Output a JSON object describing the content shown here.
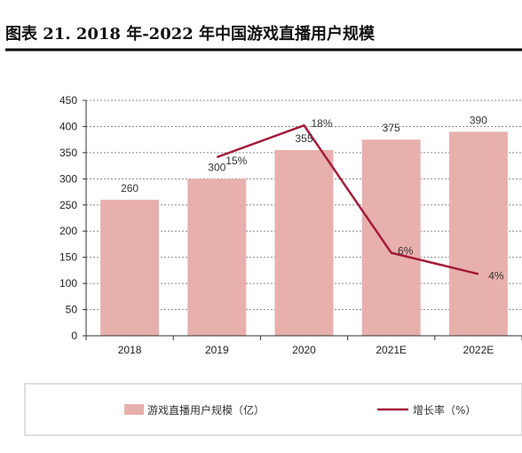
{
  "title": "图表 21. 2018 年-2022 年中国游戏直播用户规模",
  "chart_data": {
    "type": "bar",
    "categories": [
      "2018",
      "2019",
      "2020",
      "2021E",
      "2022E"
    ],
    "series": [
      {
        "name": "游戏直播用户规模（亿）",
        "type": "bar",
        "values": [
          260,
          300,
          355,
          375,
          390
        ],
        "color": "#e8b0ad"
      },
      {
        "name": "增长率（%）",
        "type": "line",
        "values": [
          null,
          15,
          18,
          6,
          4
        ],
        "labels": [
          "",
          "15%",
          "18%",
          "6%",
          "4%"
        ],
        "color": "#a31c3a"
      }
    ],
    "y_ticks": [
      "0",
      "50",
      "100",
      "150",
      "200",
      "250",
      "300",
      "350",
      "400",
      "450"
    ],
    "ylim": [
      0,
      450
    ],
    "grid": "horizontal",
    "legend_position": "bottom"
  }
}
